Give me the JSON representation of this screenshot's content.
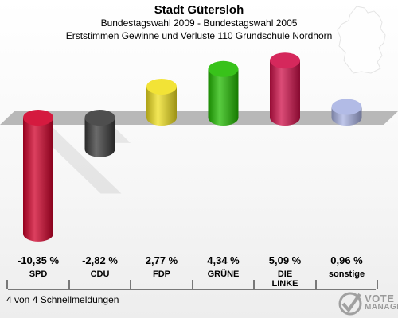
{
  "header": {
    "title": "Stadt Gütersloh",
    "subtitle": "Bundestagswahl 2009 - Bundestagswahl 2005",
    "subtitle2": "Erststimmen Gewinne und Verluste 110 Grundschule Nordhorn"
  },
  "footer": {
    "note": "4 von 4 Schnellmeldungen"
  },
  "logo": {
    "line1": "VOTE",
    "line2": "MANAGER",
    "icon": "votemanager-logo-icon"
  },
  "map": {
    "icon": "germany-map-icon"
  },
  "chart_data": {
    "type": "bar",
    "categories": [
      "SPD",
      "CDU",
      "FDP",
      "GRÜNE",
      "DIE LINKE",
      "sonstige"
    ],
    "category_lines": [
      [
        "SPD"
      ],
      [
        "CDU"
      ],
      [
        "FDP"
      ],
      [
        "GRÜNE"
      ],
      [
        "DIE",
        "LINKE"
      ],
      [
        "sonstige"
      ]
    ],
    "values": [
      -10.35,
      -2.82,
      2.77,
      4.34,
      5.09,
      0.96
    ],
    "value_labels": [
      "-10,35 %",
      "-2,82 %",
      "2,77 %",
      "4,34 %",
      "5,09 %",
      "0,96 %"
    ],
    "colors": [
      "#d0002a",
      "#3a3a3a",
      "#f0e020",
      "#22bb00",
      "#d0104a",
      "#a9b3e3"
    ],
    "title": "Stadt Gütersloh",
    "subtitle": "Bundestagswahl 2009 - Bundestagswahl 2005",
    "ylim": [
      -10.35,
      5.09
    ],
    "grid": false,
    "legend": "none"
  }
}
